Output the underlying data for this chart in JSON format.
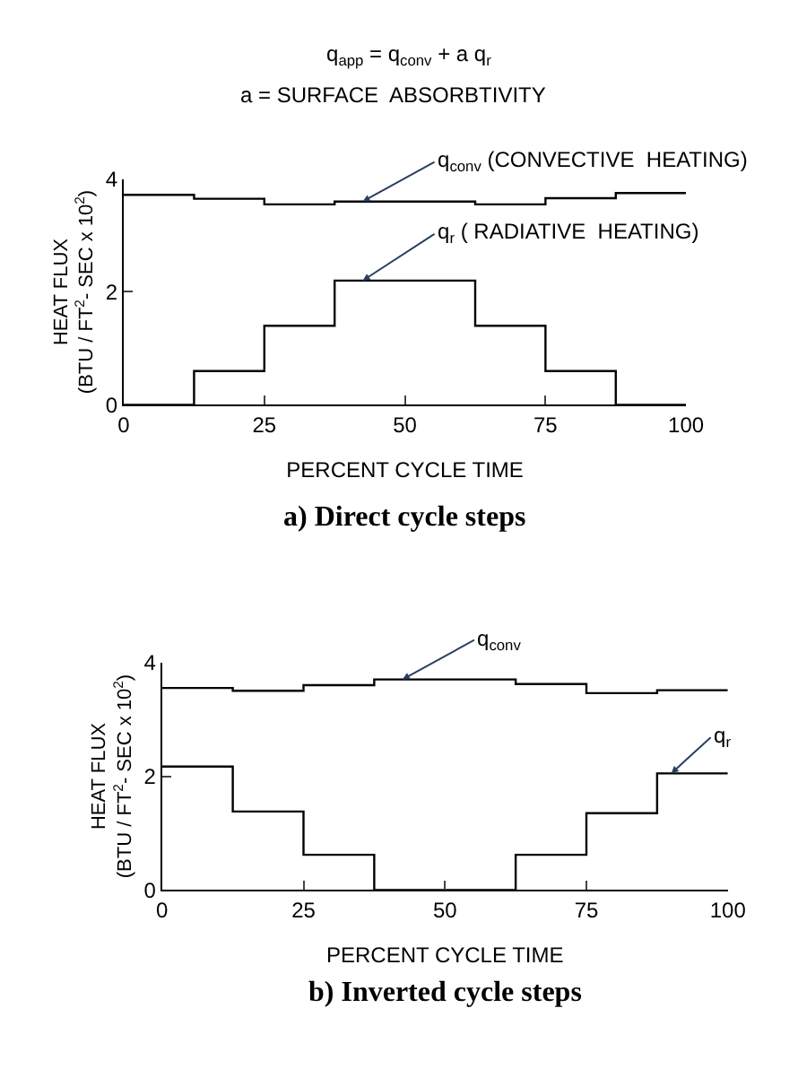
{
  "chart_data": [
    {
      "type": "step",
      "title": "a) Direct cycle steps",
      "xlabel": "PERCENT CYCLE TIME",
      "ylabel": "HEAT FLUX\n(BTU / FT$^{2}$- SEC x 10$^{2}$)",
      "annotations": [
        "q$_{app}$ = q$_{conv}$ + a q$_{r}$",
        "a = SURFACE  ABSORBTIVITY"
      ],
      "x": [
        0,
        12.5,
        25,
        37.5,
        62.5,
        75,
        87.5,
        100
      ],
      "series": [
        {
          "name": "q$_{conv}$ (CONVECTIVE  HEATING)",
          "color": "#000000",
          "values": [
            3.72,
            3.65,
            3.55,
            3.6,
            3.55,
            3.66,
            3.75,
            3.75
          ]
        },
        {
          "name": "q$_{r}$ ( RADIATIVE  HEATING)",
          "color": "#000000",
          "values": [
            0,
            0.6,
            1.4,
            2.2,
            1.4,
            0.6,
            0,
            0
          ]
        }
      ],
      "xlim": [
        0,
        100
      ],
      "xticks": [
        0,
        25,
        50,
        75,
        100
      ],
      "ylim": [
        0,
        4
      ],
      "yticks": [
        0,
        2,
        4
      ],
      "grid": false
    },
    {
      "type": "step",
      "title": "b) Inverted cycle steps",
      "xlabel": "PERCENT CYCLE TIME",
      "ylabel": "HEAT FLUX\n(BTU / FT$^{2}$- SEC x 10$^{2}$)",
      "x": [
        0,
        12.5,
        25,
        37.5,
        62.5,
        75,
        87.5,
        100
      ],
      "series": [
        {
          "name": "q$_{conv}$",
          "color": "#000000",
          "values": [
            3.55,
            3.5,
            3.6,
            3.7,
            3.62,
            3.46,
            3.51,
            3.51
          ]
        },
        {
          "name": "q$_{r}$",
          "color": "#000000",
          "values": [
            2.17,
            1.38,
            0.62,
            0,
            0.62,
            1.35,
            2.05,
            2.05
          ]
        }
      ],
      "xlim": [
        0,
        100
      ],
      "xticks": [
        0,
        25,
        50,
        75,
        100
      ],
      "ylim": [
        0,
        4
      ],
      "yticks": [
        0,
        2,
        4
      ],
      "grid": false
    }
  ]
}
